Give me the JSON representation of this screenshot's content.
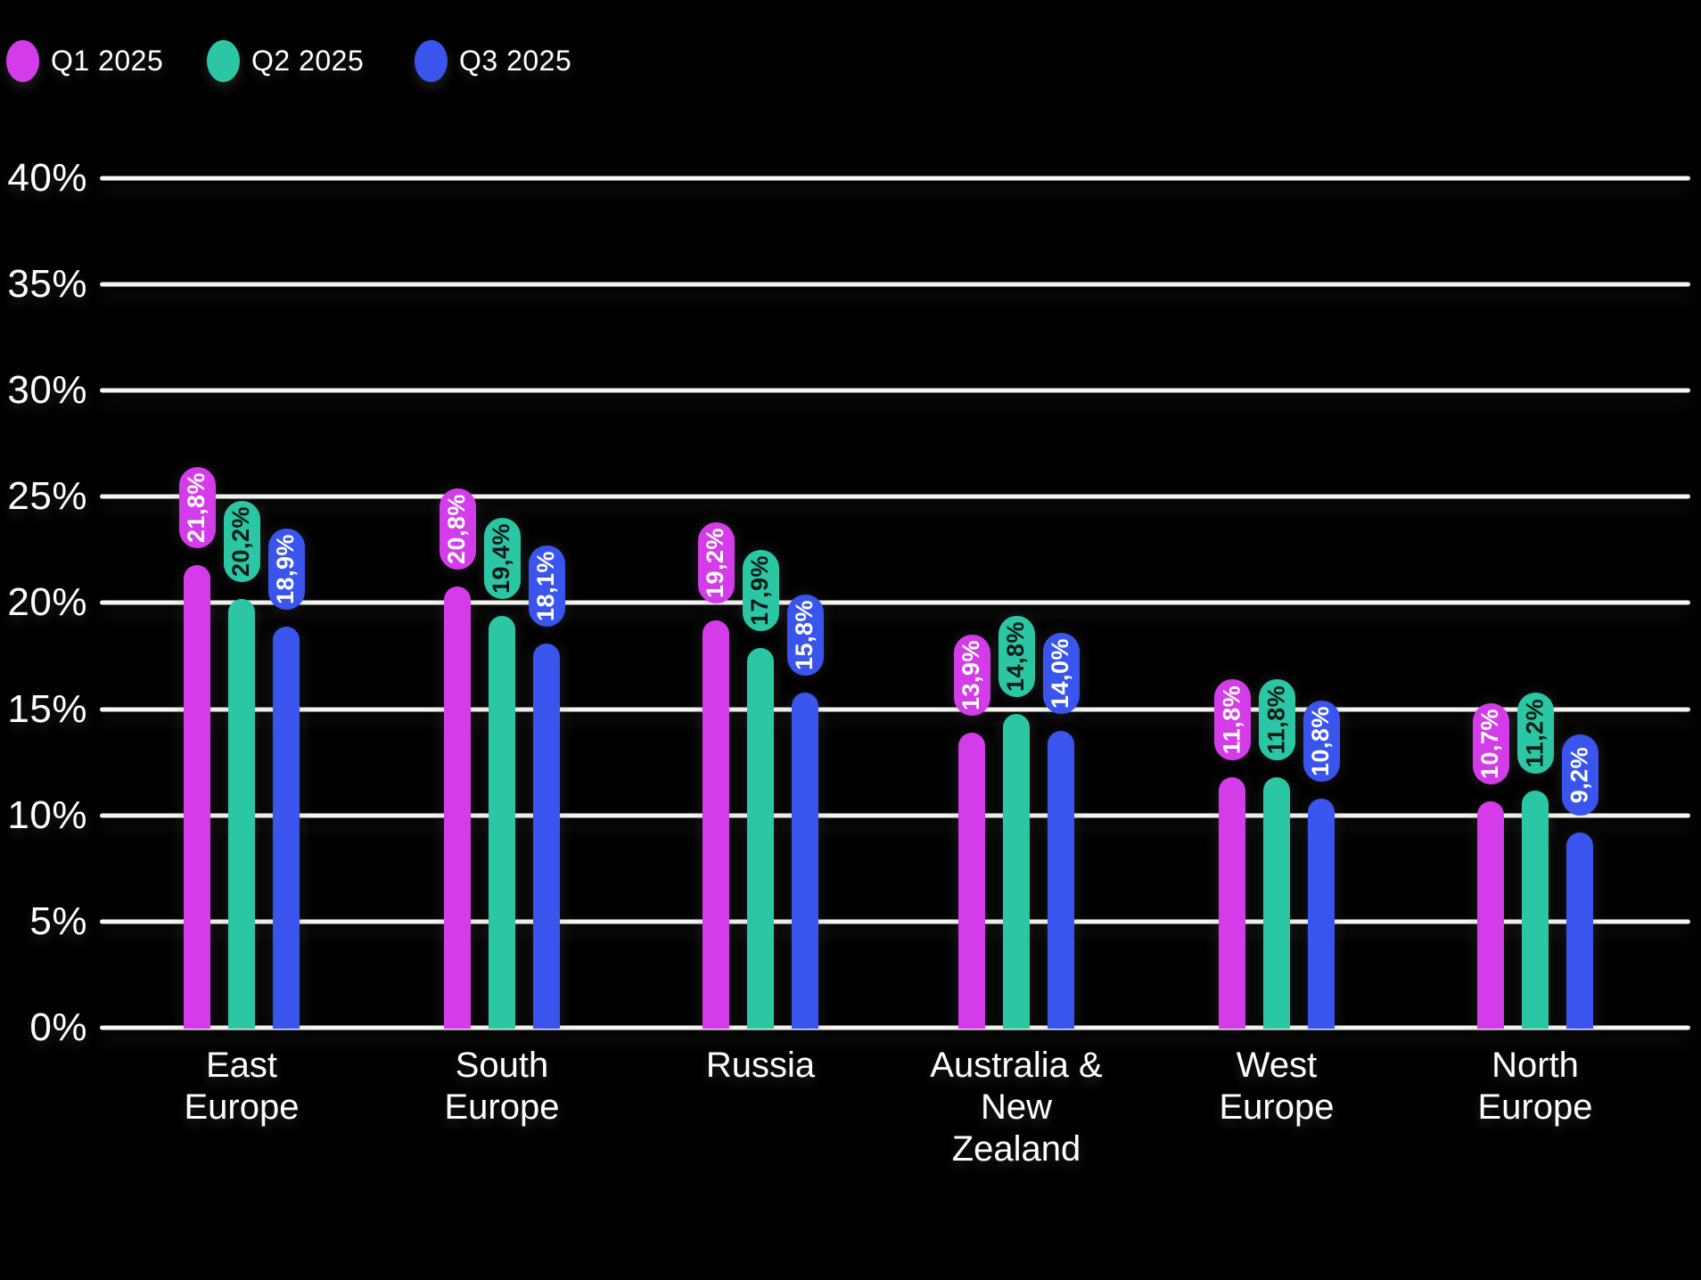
{
  "legend": {
    "items": [
      {
        "label": "Q1 2025",
        "color": "#d43ce9"
      },
      {
        "label": "Q2 2025",
        "color": "#2bc7a4"
      },
      {
        "label": "Q3 2025",
        "color": "#3a55ee"
      }
    ]
  },
  "chart_data": {
    "type": "bar",
    "title": "",
    "categories": [
      "East Europe",
      "South Europe",
      "Russia",
      "Australia & New Zealand",
      "West Europe",
      "North Europe"
    ],
    "category_lines": [
      [
        "East",
        "Europe"
      ],
      [
        "South",
        "Europe"
      ],
      [
        "Russia"
      ],
      [
        "Australia &",
        "New",
        "Zealand"
      ],
      [
        "West",
        "Europe"
      ],
      [
        "North",
        "Europe"
      ]
    ],
    "series": [
      {
        "name": "Q1 2025",
        "color": "#d43ce9",
        "label_text_color": "#ffffff",
        "values": [
          21.8,
          20.8,
          19.2,
          13.9,
          11.8,
          10.7
        ],
        "labels": [
          "21,8%",
          "20,8%",
          "19,2%",
          "13,9%",
          "11,8%",
          "10,7%"
        ]
      },
      {
        "name": "Q2 2025",
        "color": "#2bc7a4",
        "label_text_color": "#0e1a17",
        "values": [
          20.2,
          19.4,
          17.9,
          14.8,
          11.8,
          11.2
        ],
        "labels": [
          "20,2%",
          "19,4%",
          "17,9%",
          "14,8%",
          "11,8%",
          "11,2%"
        ]
      },
      {
        "name": "Q3 2025",
        "color": "#3a55ee",
        "label_text_color": "#ffffff",
        "values": [
          18.9,
          18.1,
          15.8,
          14.0,
          10.8,
          9.2
        ],
        "labels": [
          "18,9%",
          "18,1%",
          "15,8%",
          "14,0%",
          "10,8%",
          "9,2%"
        ]
      }
    ],
    "y_axis": {
      "ticks": [
        "40%",
        "35%",
        "30%",
        "25%",
        "20%",
        "15%",
        "10%",
        "5%",
        "0%"
      ],
      "min": 0,
      "max": 40,
      "step": 5,
      "unit": "%"
    },
    "xlabel": "",
    "ylabel": "",
    "grid": true,
    "legend_position": "top-left",
    "background": "#000000",
    "grid_color": "#f8f6f1",
    "text_color": "#ffffff"
  }
}
